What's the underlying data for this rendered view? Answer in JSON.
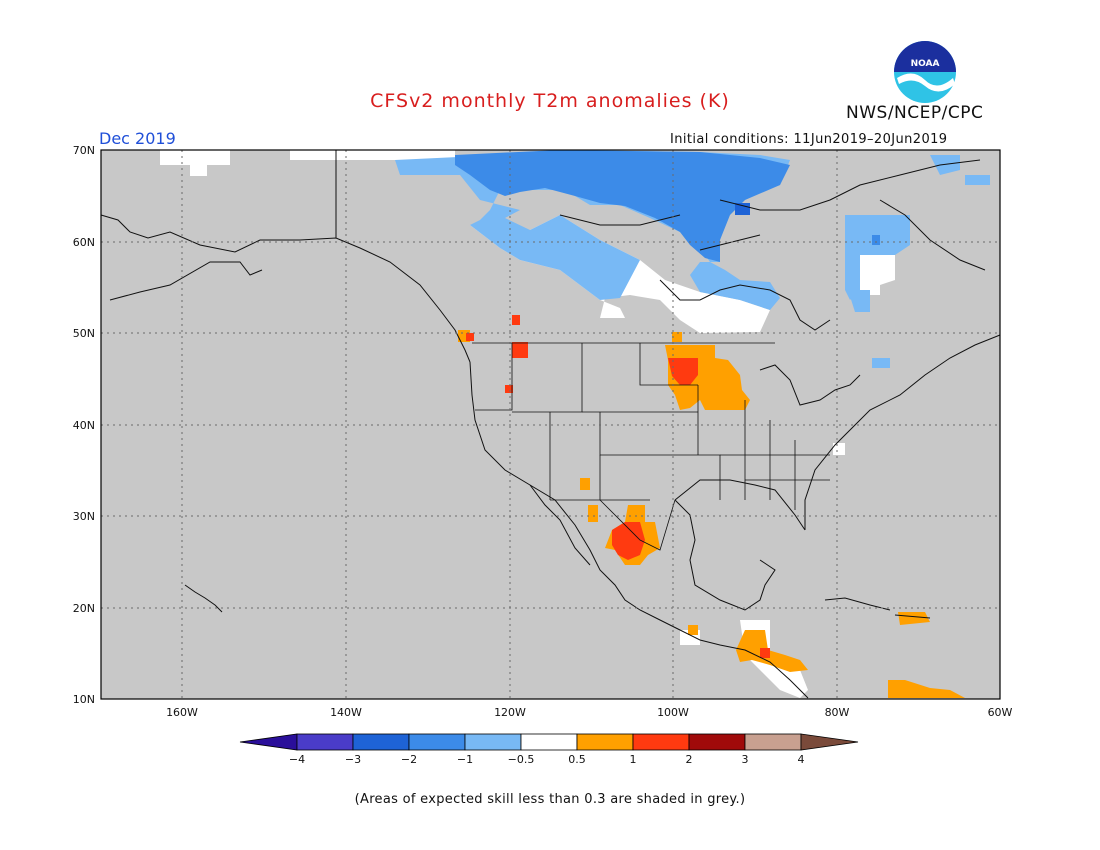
{
  "title": "CFSv2 monthly T2m anomalies (K)",
  "agency": "NWS/NCEP/CPC",
  "logo": {
    "icon": "noaa-logo-icon",
    "text": "NOAA"
  },
  "target_month": "Dec 2019",
  "initial_conditions": "Initial conditions: 11Jun2019–20Jun2019",
  "map": {
    "lon_range": [
      -170,
      -60
    ],
    "lat_range": [
      10,
      70
    ],
    "lat_labels": [
      "70N",
      "60N",
      "50N",
      "40N",
      "30N",
      "20N",
      "10N"
    ],
    "lon_labels": [
      "160W",
      "140W",
      "120W",
      "100W",
      "80W",
      "60W"
    ],
    "background_color": "#c8c8c8",
    "grid": "dotted"
  },
  "colorbar": {
    "tick_labels": [
      "−4",
      "−3",
      "−2",
      "−1",
      "−0.5",
      "0.5",
      "1",
      "2",
      "3",
      "4"
    ],
    "colors": [
      "#2a0f9a",
      "#4a3cc8",
      "#1e63d6",
      "#3c8be8",
      "#78b9f5",
      "#ffffff",
      "#ffa000",
      "#ff3a10",
      "#a00a0a",
      "#c8a090",
      "#7a4a3a"
    ]
  },
  "note": "(Areas of expected skill less than 0.3 are shaded in grey.)"
}
